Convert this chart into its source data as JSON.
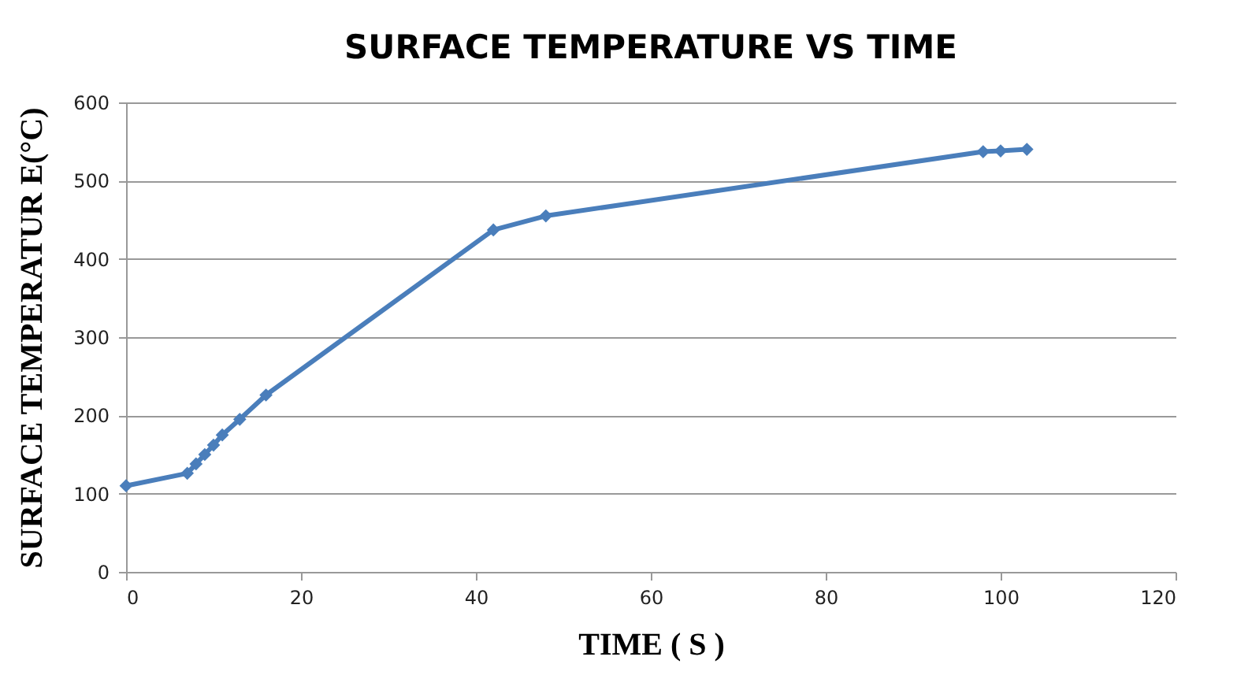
{
  "chart_data": {
    "type": "line",
    "title": "SURFACE TEMPERATURE VS TIME",
    "xlabel": "TIME ( S )",
    "ylabel": "SURFACE TEMPERATUR E(°C)",
    "x": [
      0,
      7,
      8,
      9,
      10,
      11,
      13,
      16,
      42,
      48,
      98,
      100,
      103
    ],
    "series": [
      {
        "color": "#4a7ebb",
        "values": [
          110,
          126,
          138,
          150,
          162,
          175,
          195,
          226,
          437,
          455,
          537,
          538,
          540
        ]
      }
    ],
    "xlim": [
      0,
      120
    ],
    "xticks": [
      0,
      20,
      40,
      60,
      80,
      100,
      120
    ],
    "ylim": [
      0,
      600
    ],
    "yticks": [
      0,
      100,
      200,
      300,
      400,
      500,
      600
    ],
    "grid": "y",
    "marker": "diamond",
    "line_style": "solid"
  }
}
